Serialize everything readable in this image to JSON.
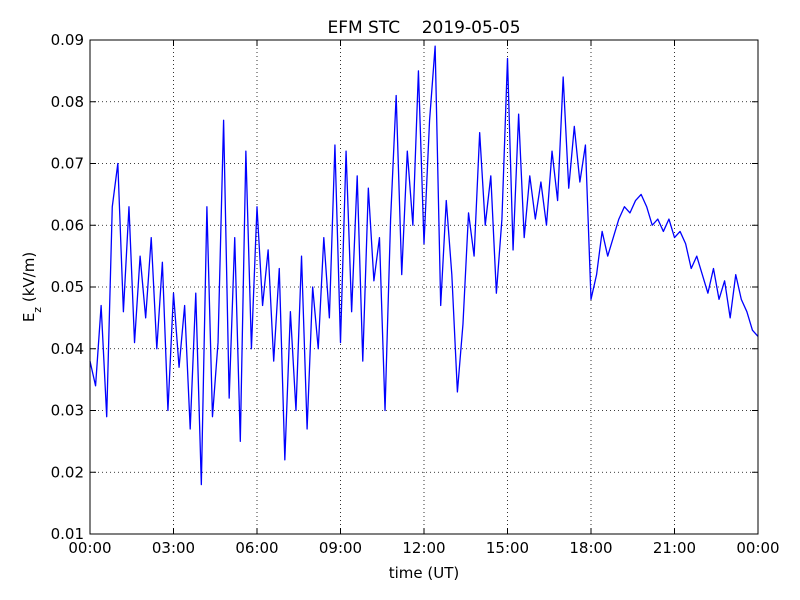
{
  "chart_data": {
    "type": "line",
    "title": "EFM STC    2019-05-05",
    "xlabel": "time (UT)",
    "ylabel": {
      "text": "E",
      "subscript": "z",
      "suffix": " (kV/m)"
    },
    "x": [
      0,
      0.2,
      0.4,
      0.6,
      0.8,
      1,
      1.2,
      1.4,
      1.6,
      1.8,
      2,
      2.2,
      2.4,
      2.6,
      2.8,
      3,
      3.2,
      3.4,
      3.6,
      3.8,
      4,
      4.2,
      4.4,
      4.6,
      4.8,
      5,
      5.2,
      5.4,
      5.6,
      5.8,
      6,
      6.2,
      6.4,
      6.6,
      6.8,
      7,
      7.2,
      7.4,
      7.6,
      7.8,
      8,
      8.2,
      8.4,
      8.6,
      8.8,
      9,
      9.2,
      9.4,
      9.6,
      9.8,
      10,
      10.2,
      10.4,
      10.6,
      10.8,
      11,
      11.2,
      11.4,
      11.6,
      11.8,
      12,
      12.2,
      12.4,
      12.6,
      12.8,
      13,
      13.2,
      13.4,
      13.6,
      13.8,
      14,
      14.2,
      14.4,
      14.6,
      14.8,
      15,
      15.2,
      15.4,
      15.6,
      15.8,
      16,
      16.2,
      16.4,
      16.6,
      16.8,
      17,
      17.2,
      17.4,
      17.6,
      17.8,
      18,
      18.2,
      18.4,
      18.6,
      18.8,
      19,
      19.2,
      19.4,
      19.6,
      19.8,
      20,
      20.2,
      20.4,
      20.6,
      20.8,
      21,
      21.2,
      21.4,
      21.6,
      21.8,
      22,
      22.2,
      22.4,
      22.6,
      22.8,
      23,
      23.2,
      23.4,
      23.6,
      23.8,
      24
    ],
    "values": [
      0.038,
      0.034,
      0.047,
      0.029,
      0.063,
      0.07,
      0.046,
      0.063,
      0.041,
      0.055,
      0.045,
      0.058,
      0.04,
      0.054,
      0.03,
      0.049,
      0.037,
      0.047,
      0.027,
      0.049,
      0.018,
      0.063,
      0.029,
      0.041,
      0.077,
      0.032,
      0.058,
      0.025,
      0.072,
      0.04,
      0.063,
      0.047,
      0.056,
      0.038,
      0.053,
      0.022,
      0.046,
      0.03,
      0.055,
      0.027,
      0.05,
      0.04,
      0.058,
      0.045,
      0.073,
      0.041,
      0.072,
      0.046,
      0.068,
      0.038,
      0.066,
      0.051,
      0.058,
      0.03,
      0.061,
      0.081,
      0.052,
      0.072,
      0.06,
      0.085,
      0.057,
      0.077,
      0.089,
      0.047,
      0.064,
      0.052,
      0.033,
      0.044,
      0.062,
      0.055,
      0.075,
      0.06,
      0.068,
      0.049,
      0.061,
      0.087,
      0.056,
      0.078,
      0.058,
      0.068,
      0.061,
      0.067,
      0.06,
      0.072,
      0.064,
      0.084,
      0.066,
      0.076,
      0.067,
      0.073,
      0.048,
      0.052,
      0.059,
      0.055,
      0.058,
      0.061,
      0.063,
      0.062,
      0.064,
      0.065,
      0.063,
      0.06,
      0.061,
      0.059,
      0.061,
      0.058,
      0.059,
      0.057,
      0.053,
      0.055,
      0.052,
      0.049,
      0.053,
      0.048,
      0.051,
      0.045,
      0.052,
      0.048,
      0.046,
      0.043,
      0.042
    ],
    "color": "#0000ff",
    "xlim": [
      0,
      24
    ],
    "xticks": [
      {
        "value": 0,
        "label": "00:00"
      },
      {
        "value": 3,
        "label": "03:00"
      },
      {
        "value": 6,
        "label": "06:00"
      },
      {
        "value": 9,
        "label": "09:00"
      },
      {
        "value": 12,
        "label": "12:00"
      },
      {
        "value": 15,
        "label": "15:00"
      },
      {
        "value": 18,
        "label": "18:00"
      },
      {
        "value": 21,
        "label": "21:00"
      },
      {
        "value": 24,
        "label": "00:00"
      }
    ],
    "ylim": [
      0.01,
      0.09
    ],
    "yticks": [
      0.01,
      0.02,
      0.03,
      0.04,
      0.05,
      0.06,
      0.07,
      0.08,
      0.09
    ],
    "grid": true
  }
}
